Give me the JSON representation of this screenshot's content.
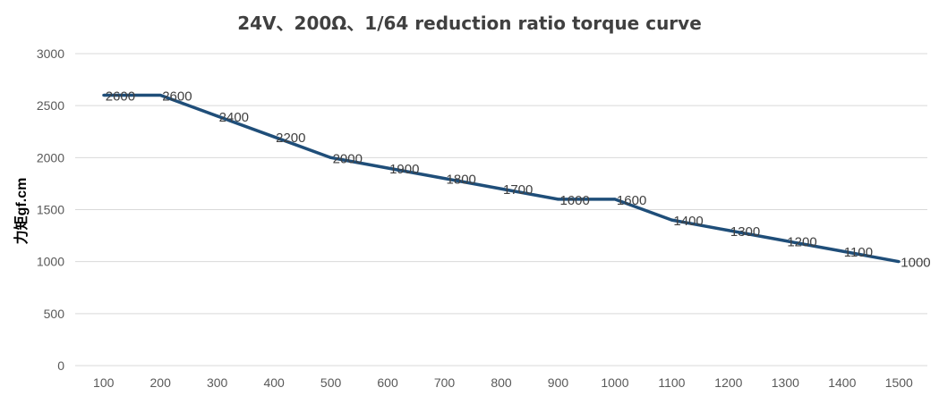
{
  "chart_data": {
    "type": "line",
    "title": "24V、200Ω、1/64 reduction ratio torque curve",
    "xlabel": "",
    "ylabel": "力矩gf.cm",
    "x": [
      100,
      200,
      300,
      400,
      500,
      600,
      700,
      800,
      900,
      1000,
      1100,
      1200,
      1300,
      1400,
      1500
    ],
    "series": [
      {
        "values": [
          2600,
          2600,
          2400,
          2200,
          2000,
          1900,
          1800,
          1700,
          1600,
          1600,
          1400,
          1300,
          1200,
          1100,
          1000
        ]
      }
    ],
    "ylim": [
      0,
      3000
    ],
    "yticks": [
      0,
      500,
      1000,
      1500,
      2000,
      2500,
      3000
    ],
    "grid": true,
    "legend": "none",
    "line_color": "#1f4e79",
    "grid_color": "#d9d9d9"
  }
}
